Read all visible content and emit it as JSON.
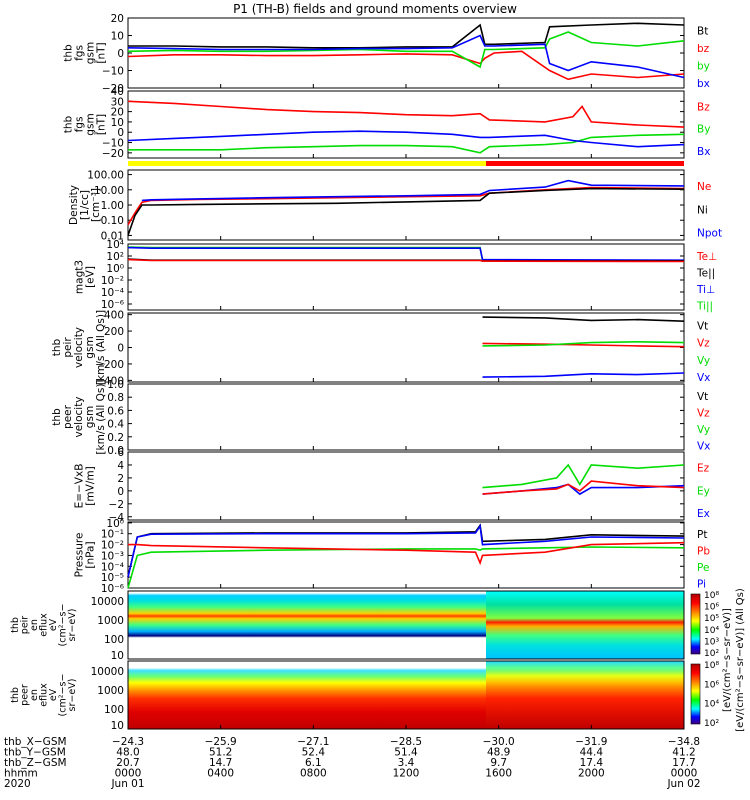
{
  "title": "P1 (TH-B) fields and ground moments overview",
  "colors": {
    "black": "#000000",
    "red": "#ff0000",
    "green": "#00dd00",
    "blue": "#0000ff",
    "yellow": "#ffff00",
    "panel_bg": "#ffffff"
  },
  "chart_data": [
    {
      "type": "line",
      "ylabel": [
        "thb",
        "fgs",
        "gsm",
        "[nT]"
      ],
      "ylim": [
        -20,
        20
      ],
      "yticks": [
        "20",
        "10",
        "0",
        "−10",
        "−20"
      ],
      "tick_values": [
        20,
        10,
        0,
        -10,
        -20
      ],
      "legend": [
        {
          "name": "Bt",
          "color": "black"
        },
        {
          "name": "bz",
          "color": "red"
        },
        {
          "name": "by",
          "color": "green"
        },
        {
          "name": "bx",
          "color": "blue"
        }
      ],
      "series": [
        {
          "name": "Bt",
          "color": "black",
          "x": [
            0,
            2,
            4,
            6,
            8,
            10,
            12,
            14,
            15.2,
            15.4,
            15.8,
            18,
            18.2,
            20,
            22,
            24
          ],
          "y": [
            4,
            4,
            3.5,
            3.5,
            3,
            3,
            3.5,
            3.5,
            16,
            5,
            5,
            6,
            15,
            16,
            17,
            16
          ]
        },
        {
          "name": "bz",
          "color": "red",
          "x": [
            0,
            2,
            4,
            6,
            8,
            10,
            12,
            14,
            15.2,
            15.4,
            15.8,
            17,
            18.2,
            19,
            20,
            22,
            24
          ],
          "y": [
            -2,
            -1,
            -1,
            -1.5,
            -1.5,
            -1,
            -0.5,
            -1,
            -6,
            -3,
            0,
            1,
            -10,
            -15,
            -12,
            -14,
            -12
          ]
        },
        {
          "name": "by",
          "color": "green",
          "x": [
            0,
            2,
            4,
            6,
            8,
            10,
            12,
            14,
            15.2,
            15.4,
            15.8,
            18,
            18.2,
            19,
            20,
            22,
            24
          ],
          "y": [
            1,
            1.5,
            1,
            1,
            1.5,
            2,
            1,
            1,
            -8,
            2,
            2,
            3,
            8,
            12,
            6,
            4,
            7
          ]
        },
        {
          "name": "bx",
          "color": "blue",
          "x": [
            0,
            2,
            4,
            6,
            8,
            10,
            12,
            14,
            15.2,
            15.4,
            15.8,
            18,
            18.2,
            19,
            20,
            22,
            24
          ],
          "y": [
            3,
            2.5,
            2,
            2,
            2,
            2.5,
            2.5,
            3,
            10,
            4,
            4,
            5,
            -6,
            -10,
            -5,
            -8,
            -14
          ]
        }
      ]
    },
    {
      "type": "line",
      "ylabel": [
        "thb",
        "fgs",
        "gsm",
        "[nT]"
      ],
      "ylim": [
        -25,
        40
      ],
      "yticks": [
        "40",
        "30",
        "20",
        "10",
        "0",
        "−10",
        "−20"
      ],
      "tick_values": [
        40,
        30,
        20,
        10,
        0,
        -10,
        -20
      ],
      "legend": [
        {
          "name": "Bz",
          "color": "red"
        },
        {
          "name": "By",
          "color": "green"
        },
        {
          "name": "Bx",
          "color": "blue"
        }
      ],
      "series": [
        {
          "name": "Bz",
          "color": "red",
          "x": [
            0,
            2,
            4,
            6,
            8,
            10,
            12,
            14,
            15.2,
            15.6,
            18,
            19.2,
            19.6,
            20,
            22,
            24
          ],
          "y": [
            30,
            28,
            25,
            22,
            20,
            19,
            17,
            16,
            18,
            12,
            10,
            15,
            25,
            10,
            7,
            5
          ]
        },
        {
          "name": "By",
          "color": "green",
          "x": [
            0,
            2,
            4,
            6,
            8,
            10,
            12,
            14,
            15.2,
            15.6,
            18,
            19.2,
            20,
            22,
            24
          ],
          "y": [
            -17,
            -17,
            -17,
            -15,
            -14,
            -13,
            -13,
            -14,
            -20,
            -14,
            -12,
            -10,
            -5,
            -3,
            -2
          ]
        },
        {
          "name": "Bx",
          "color": "blue",
          "x": [
            0,
            2,
            4,
            6,
            8,
            10,
            12,
            14,
            15.2,
            15.6,
            18,
            19.2,
            20,
            22,
            24
          ],
          "y": [
            -8,
            -6,
            -4,
            -2,
            0,
            1,
            0,
            -2,
            -5,
            -5,
            -3,
            -8,
            -10,
            -14,
            -12
          ]
        }
      ]
    },
    {
      "type": "line",
      "scale": "log",
      "ylabel": [
        "Density",
        "[1/cc]",
        "[cm⁻³]"
      ],
      "ylim": [
        0.005,
        200
      ],
      "yticks": [
        "100.00",
        "10.00",
        "1.00",
        "0.10",
        "0.01"
      ],
      "tick_values": [
        100,
        10,
        1,
        0.1,
        0.01
      ],
      "legend": [
        {
          "name": "Ne",
          "color": "red"
        },
        {
          "name": "Ni",
          "color": "black"
        },
        {
          "name": "Npot",
          "color": "blue"
        }
      ],
      "series": [
        {
          "name": "Ne",
          "color": "red",
          "x": [
            0,
            0.3,
            0.6,
            1,
            3,
            6,
            9,
            12,
            15.2,
            15.6,
            18,
            20,
            24
          ],
          "y": [
            0.05,
            0.3,
            1.5,
            2,
            2.3,
            2.6,
            3,
            3.5,
            4,
            6,
            10,
            14,
            12
          ]
        },
        {
          "name": "Ni",
          "color": "black",
          "x": [
            0,
            0.3,
            0.6,
            1,
            3,
            6,
            9,
            12,
            15.2,
            15.6,
            18,
            20,
            24
          ],
          "y": [
            0.01,
            0.2,
            1,
            1,
            1.1,
            1.2,
            1.3,
            1.6,
            2,
            6,
            9,
            12,
            11
          ]
        },
        {
          "name": "Npot",
          "color": "blue",
          "x": [
            0.6,
            1,
            3,
            6,
            9,
            12,
            15.2,
            15.6,
            18,
            19,
            20,
            24
          ],
          "y": [
            2,
            2.2,
            2.5,
            3,
            3.5,
            4,
            5,
            9,
            15,
            40,
            20,
            18
          ]
        }
      ]
    },
    {
      "type": "line",
      "scale": "log",
      "ylabel": [
        "magt3",
        "[eV]"
      ],
      "ylim": [
        1e-07,
        10000.0
      ],
      "yticks": [
        "10⁴",
        "10²",
        "10⁰",
        "10⁻²",
        "10⁻⁴",
        "10⁻⁶"
      ],
      "tick_values": [
        10000.0,
        100.0,
        1,
        0.01,
        0.0001,
        1e-06
      ],
      "legend": [
        {
          "name": "Te⊥",
          "color": "red"
        },
        {
          "name": "Te||",
          "color": "black"
        },
        {
          "name": "Ti⊥",
          "color": "blue"
        },
        {
          "name": "Ti||",
          "color": "green"
        }
      ],
      "series": [
        {
          "name": "Ti||",
          "color": "green",
          "x": [
            0,
            1,
            15.2,
            15.3,
            24
          ],
          "y": [
            3000,
            2500,
            2500,
            20,
            15
          ]
        },
        {
          "name": "Ti⊥",
          "color": "blue",
          "x": [
            0,
            1,
            15.2,
            15.3,
            24
          ],
          "y": [
            2500,
            2000,
            2000,
            25,
            20
          ]
        },
        {
          "name": "Te||",
          "color": "black",
          "x": [
            0,
            1,
            15.2,
            15.3,
            24
          ],
          "y": [
            30,
            20,
            20,
            15,
            15
          ]
        },
        {
          "name": "Te⊥",
          "color": "red",
          "x": [
            0,
            1,
            15.2,
            15.3,
            24
          ],
          "y": [
            25,
            18,
            18,
            14,
            12
          ]
        }
      ]
    },
    {
      "type": "line",
      "ylabel": [
        "thb",
        "peir",
        "velocity",
        "gsm",
        "[km/s (All Qs)]"
      ],
      "ylim": [
        -420,
        420
      ],
      "yticks": [
        "400",
        "200",
        "0",
        "−200",
        "−400"
      ],
      "tick_values": [
        400,
        200,
        0,
        -200,
        -400
      ],
      "legend": [
        {
          "name": "Vt",
          "color": "black"
        },
        {
          "name": "Vz",
          "color": "red"
        },
        {
          "name": "Vy",
          "color": "green"
        },
        {
          "name": "Vx",
          "color": "blue"
        }
      ],
      "series": [
        {
          "name": "Vt",
          "color": "black",
          "x": [
            15.3,
            18,
            20,
            22,
            24
          ],
          "y": [
            370,
            360,
            330,
            340,
            320
          ]
        },
        {
          "name": "Vz",
          "color": "red",
          "x": [
            15.3,
            18,
            20,
            22,
            24
          ],
          "y": [
            50,
            40,
            30,
            20,
            10
          ]
        },
        {
          "name": "Vy",
          "color": "green",
          "x": [
            15.3,
            18,
            20,
            22,
            24
          ],
          "y": [
            20,
            30,
            60,
            70,
            60
          ]
        },
        {
          "name": "Vx",
          "color": "blue",
          "x": [
            15.3,
            18,
            20,
            22,
            24
          ],
          "y": [
            -360,
            -350,
            -320,
            -330,
            -310
          ]
        }
      ]
    },
    {
      "type": "line",
      "ylabel": [
        "thb",
        "peer",
        "velocity",
        "gsm",
        "[km/s (All Qs)]"
      ],
      "ylim": [
        0,
        1
      ],
      "yticks": [
        "1.0",
        "0.8",
        "0.6",
        "0.4",
        "0.2",
        "0.0"
      ],
      "tick_values": [
        1,
        0.8,
        0.6,
        0.4,
        0.2,
        0
      ],
      "legend": [
        {
          "name": "Vt",
          "color": "black"
        },
        {
          "name": "Vz",
          "color": "red"
        },
        {
          "name": "Vy",
          "color": "green"
        },
        {
          "name": "Vx",
          "color": "blue"
        }
      ],
      "series": []
    },
    {
      "type": "line",
      "ylabel": [
        "E=−VxB",
        "[mV/m]"
      ],
      "ylim": [
        -4.5,
        6
      ],
      "yticks": [
        "6",
        "4",
        "2",
        "0",
        "−2",
        "−4"
      ],
      "tick_values": [
        6,
        4,
        2,
        0,
        -2,
        -4
      ],
      "legend": [
        {
          "name": "Ez",
          "color": "red"
        },
        {
          "name": "Ey",
          "color": "green"
        },
        {
          "name": "Ex",
          "color": "blue"
        }
      ],
      "series": [
        {
          "name": "Ey",
          "color": "green",
          "x": [
            15.3,
            17,
            18.5,
            19,
            19.5,
            20,
            22,
            24
          ],
          "y": [
            0.5,
            1,
            2,
            4,
            1,
            4,
            3.5,
            4
          ]
        },
        {
          "name": "Ex",
          "color": "blue",
          "x": [
            15.3,
            17,
            18.5,
            19,
            19.5,
            20,
            22,
            24
          ],
          "y": [
            -0.5,
            0,
            0.5,
            1,
            -0.5,
            0.5,
            0.5,
            0.8
          ]
        },
        {
          "name": "Ez",
          "color": "red",
          "x": [
            15.3,
            17,
            18.5,
            19,
            19.5,
            20,
            22,
            24
          ],
          "y": [
            -0.5,
            0,
            0.3,
            1,
            0,
            1.5,
            0.8,
            0.5
          ]
        }
      ]
    },
    {
      "type": "line",
      "scale": "log",
      "ylabel": [
        "Pressure",
        "[nPa]"
      ],
      "ylim": [
        1e-06,
        1.2
      ],
      "yticks": [
        "10⁰",
        "10⁻¹",
        "10⁻²",
        "10⁻³",
        "10⁻⁴",
        "10⁻⁵",
        "10⁻⁶"
      ],
      "tick_values": [
        1,
        0.1,
        0.01,
        0.001,
        0.0001,
        1e-05,
        1e-06
      ],
      "legend": [
        {
          "name": "Pt",
          "color": "black"
        },
        {
          "name": "Pb",
          "color": "red"
        },
        {
          "name": "Pe",
          "color": "green"
        },
        {
          "name": "Pi",
          "color": "blue"
        }
      ],
      "series": [
        {
          "name": "Pt",
          "color": "black",
          "x": [
            0,
            0.4,
            1,
            6,
            12,
            15,
            15.2,
            15.3,
            18,
            20,
            24
          ],
          "y": [
            1e-05,
            0.05,
            0.1,
            0.12,
            0.12,
            0.15,
            0.6,
            0.02,
            0.03,
            0.08,
            0.06
          ]
        },
        {
          "name": "Pi",
          "color": "blue",
          "x": [
            0,
            0.4,
            1,
            6,
            12,
            15,
            15.2,
            15.3,
            18,
            20,
            24
          ],
          "y": [
            1e-05,
            0.05,
            0.09,
            0.1,
            0.1,
            0.12,
            0.5,
            0.01,
            0.02,
            0.05,
            0.04
          ]
        },
        {
          "name": "Pe",
          "color": "green",
          "x": [
            0,
            0.4,
            1,
            6,
            12,
            15,
            15.2,
            15.3,
            18,
            20,
            24
          ],
          "y": [
            1e-06,
            0.001,
            0.002,
            0.003,
            0.004,
            0.004,
            0.003,
            0.004,
            0.005,
            0.006,
            0.005
          ]
        },
        {
          "name": "Pb",
          "color": "red",
          "x": [
            0,
            0.4,
            1,
            6,
            12,
            15,
            15.2,
            15.3,
            18,
            20,
            24
          ],
          "y": [
            0.01,
            0.01,
            0.008,
            0.005,
            0.003,
            0.002,
            0.0002,
            0.001,
            0.002,
            0.01,
            0.015
          ]
        }
      ]
    },
    {
      "type": "heatmap",
      "ylabel": [
        "thb",
        "peir",
        "en",
        "eflux",
        "eV",
        "(cm²−s−",
        "sr−eV)"
      ],
      "yticks": [
        "10000",
        "1000",
        "100",
        "10"
      ],
      "colorbar": [
        "10⁸",
        "10⁶",
        "10⁵",
        "10⁴",
        "10³",
        "10²"
      ],
      "colorbar_label": "[eV/(cm²−s−sr−eV)] (All Qs)"
    },
    {
      "type": "heatmap",
      "ylabel": [
        "thb",
        "peer",
        "en",
        "eflux",
        "eV",
        "(cm²−s−",
        "sr−eV)"
      ],
      "yticks": [
        "10000",
        "1000",
        "100",
        "10"
      ],
      "colorbar": [
        "10⁸",
        "10⁶",
        "10⁴",
        "10²"
      ],
      "colorbar_label": "[eV/(cm²−s−sr−eV)]"
    }
  ],
  "xaxis": {
    "rows": [
      {
        "label": "thb_X−GSM",
        "values": [
          "−24.3",
          "−25.9",
          "−27.1",
          "−28.5",
          "−30.0",
          "−31.9",
          "−34.8"
        ]
      },
      {
        "label": "thb_Y−GSM",
        "values": [
          "48.0",
          "51.2",
          "52.4",
          "51.4",
          "48.9",
          "44.4",
          "41.2"
        ]
      },
      {
        "label": "thb_Z−GSM",
        "values": [
          "20.7",
          "14.7",
          "6.1",
          "3.4",
          "9.7",
          "17.4",
          "17.7"
        ]
      },
      {
        "label": "hhmm",
        "values": [
          "0000",
          "0400",
          "0800",
          "1200",
          "1600",
          "2000",
          "0000"
        ]
      },
      {
        "label": "2020",
        "values": [
          "Jun 01",
          "",
          "",
          "",
          "",
          "",
          "Jun 02"
        ]
      }
    ],
    "hours": [
      0,
      4,
      8,
      12,
      16,
      20,
      24
    ]
  }
}
